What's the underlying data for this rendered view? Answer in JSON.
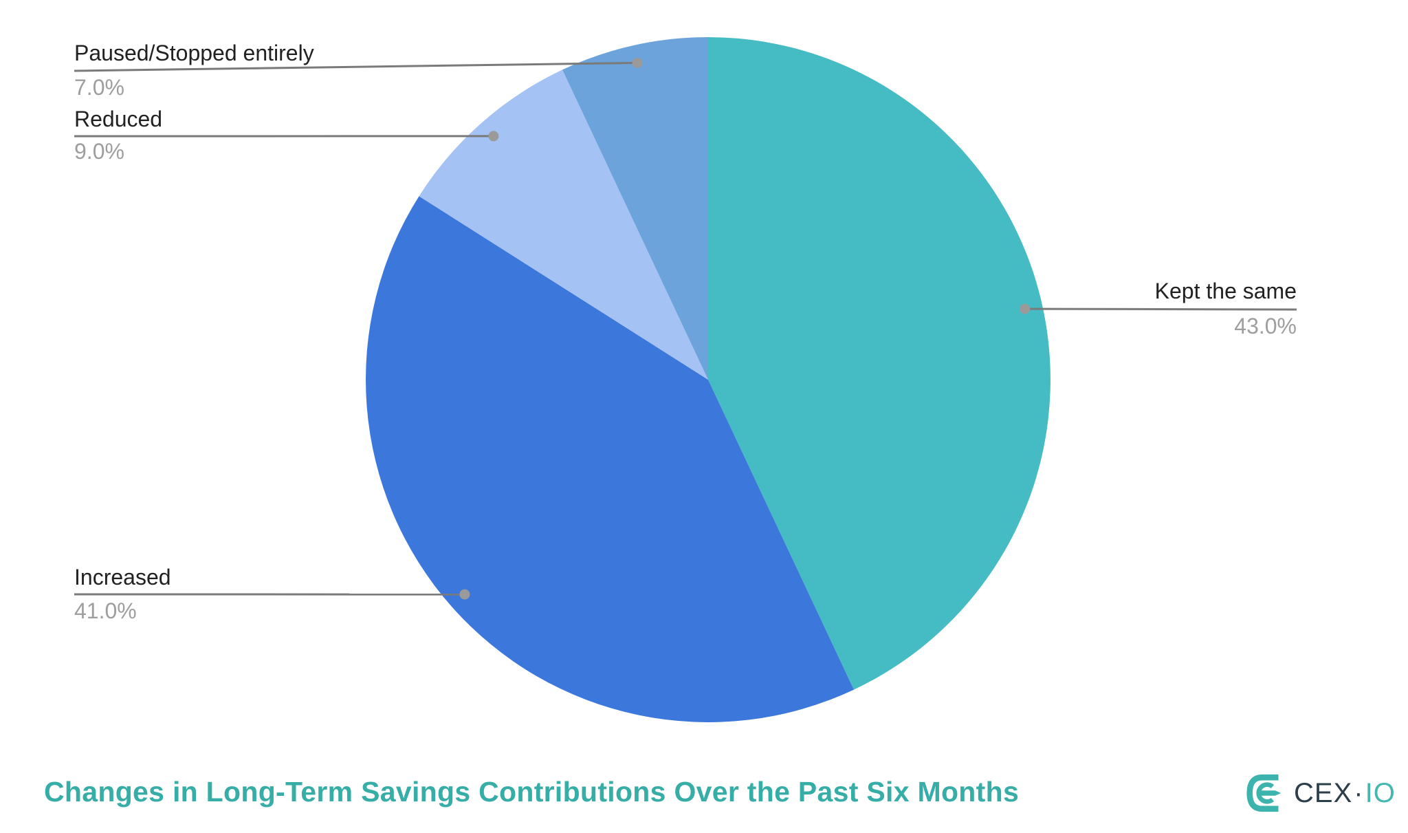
{
  "chart_data": {
    "type": "pie",
    "title": "Changes in Long-Term Savings Contributions Over the Past Six Months",
    "direction": "clockwise",
    "start_angle_deg": 0,
    "legend_position": "outside-callouts",
    "background": "#ffffff",
    "slices": [
      {
        "label": "Kept the same",
        "value": 43.0,
        "percent_label": "43.0%",
        "color": "#45bcc3"
      },
      {
        "label": "Increased",
        "value": 41.0,
        "percent_label": "41.0%",
        "color": "#3c77db"
      },
      {
        "label": "Reduced",
        "value": 9.0,
        "percent_label": "9.0%",
        "color": "#a5c2f4"
      },
      {
        "label": "Paused/Stopped entirely",
        "value": 7.0,
        "percent_label": "7.0%",
        "color": "#6da3db"
      }
    ],
    "label_text_color": "#212121",
    "percent_text_color": "#9e9e9e",
    "callout_line_color": "#7a7a7a",
    "callout_dot_color": "#9a9a9a",
    "title_color": "#36ada6"
  },
  "logo": {
    "text_primary": "CEX",
    "separator": "·",
    "text_secondary": "IO",
    "mark_color": "#3cb4ad",
    "text_primary_color": "#2c3e49",
    "text_secondary_color": "#44b8b0"
  }
}
